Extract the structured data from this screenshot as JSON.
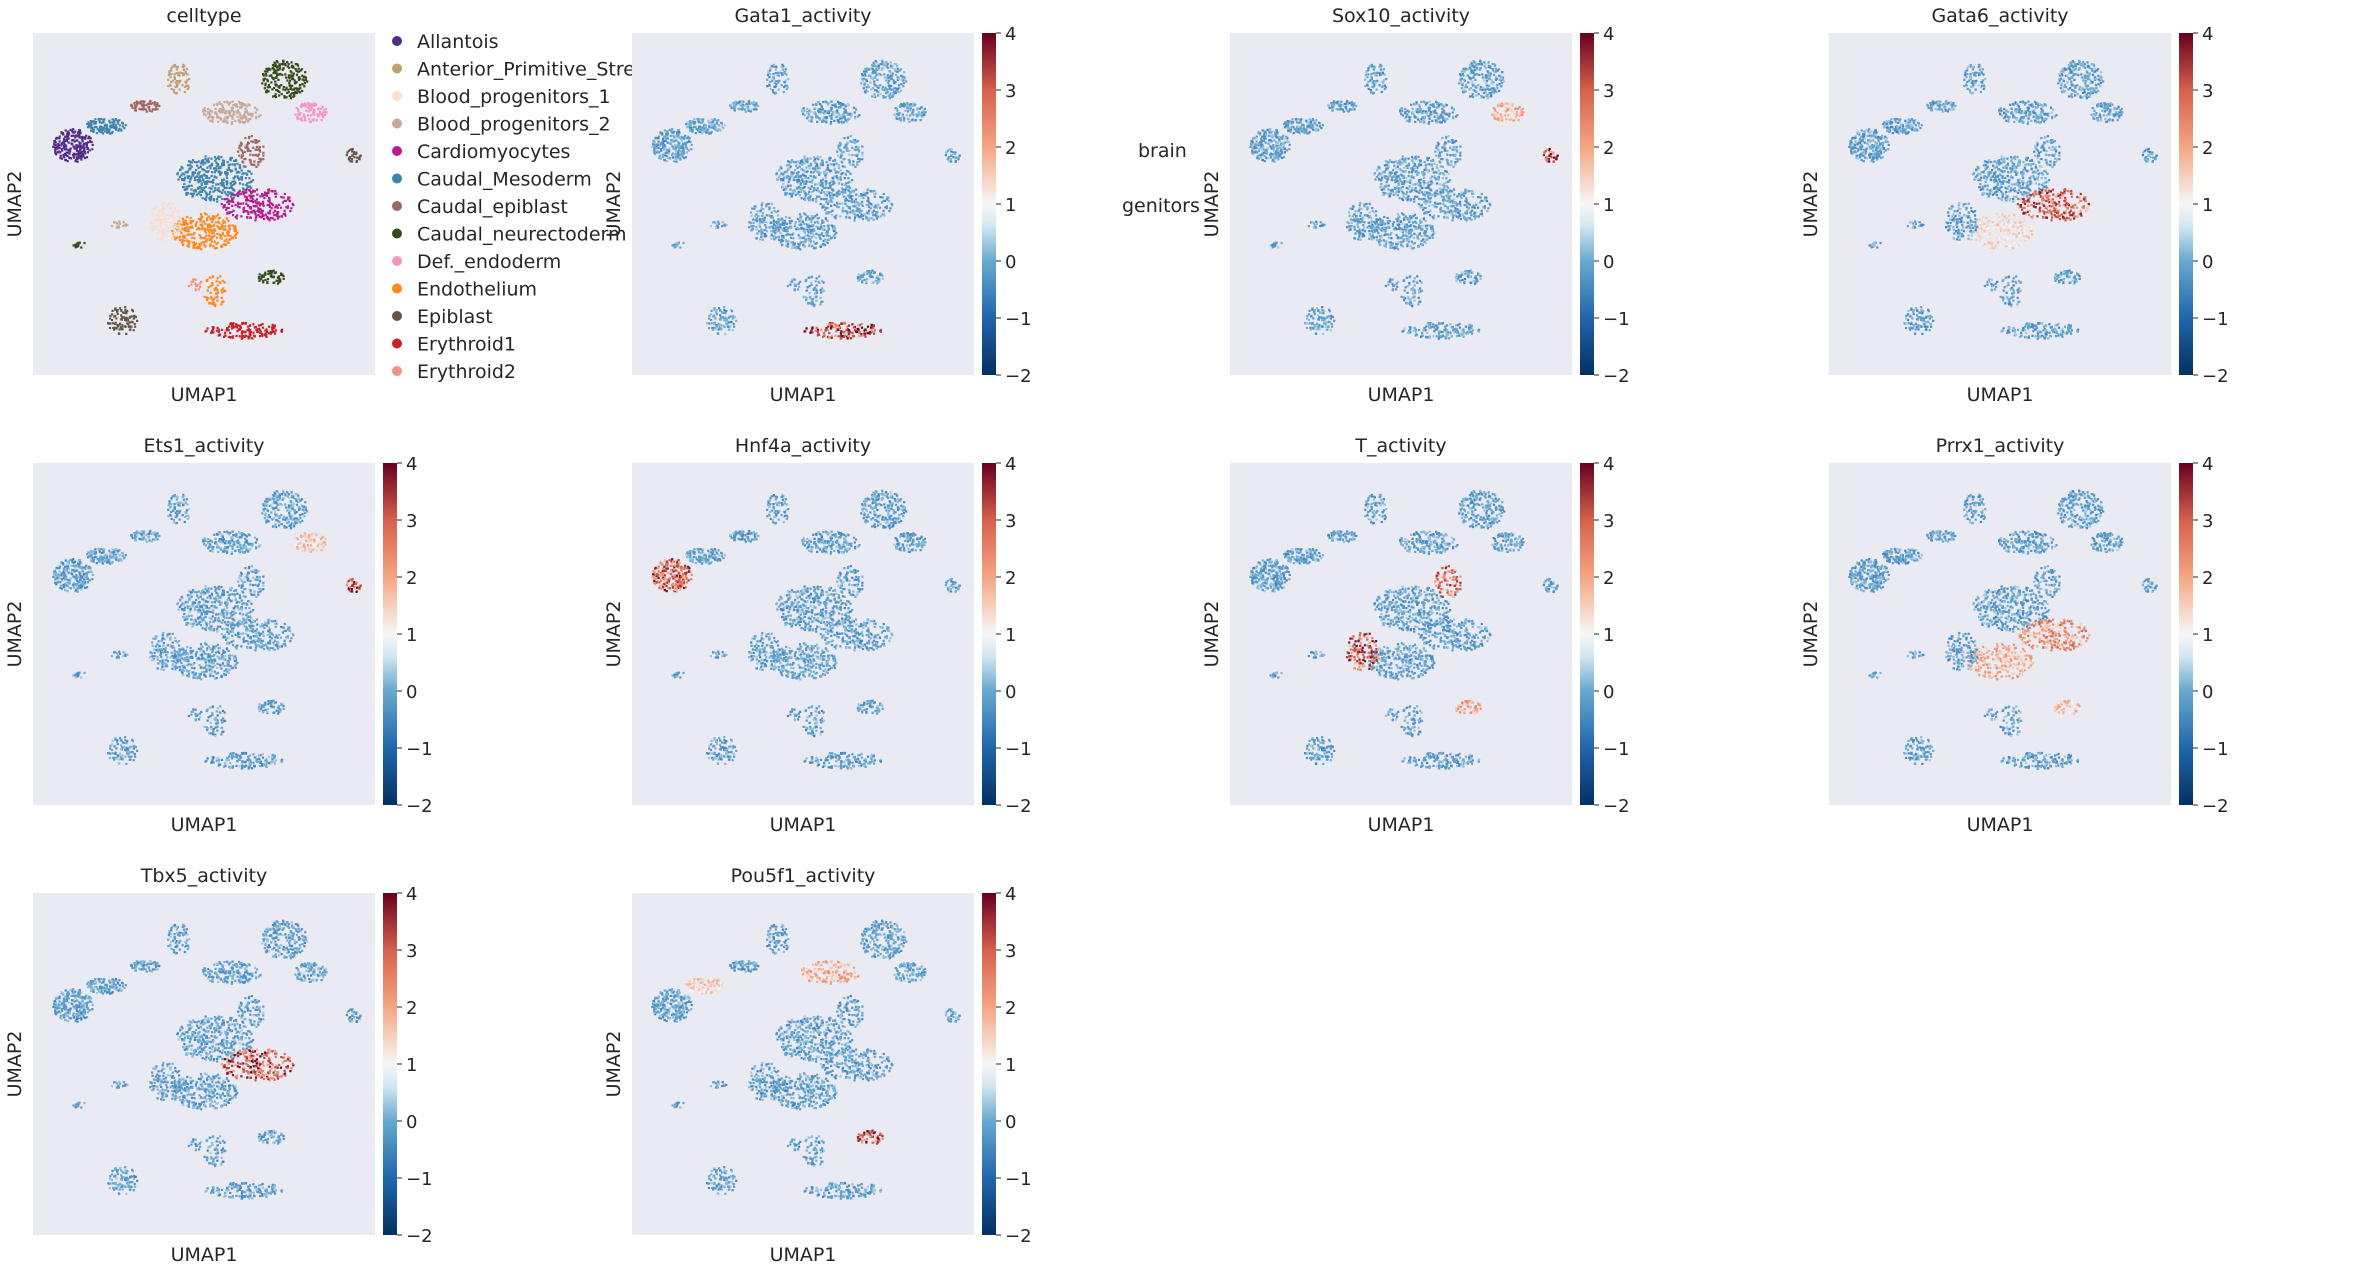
{
  "chart_data": [
    {
      "type": "scatter",
      "title": "celltype",
      "xlabel": "UMAP1",
      "ylabel": "UMAP2",
      "legend": {
        "placement": "right",
        "entries": [
          {
            "label": "Allantois",
            "color": "#532c8a"
          },
          {
            "label": "Anterior_Primitive_Streak",
            "color": "#c19f70"
          },
          {
            "label": "Blood_progenitors_1",
            "color": "#f9decf"
          },
          {
            "label": "Blood_progenitors_2",
            "color": "#c9a997"
          },
          {
            "label": "Cardiomyocytes",
            "color": "#b51d8d"
          },
          {
            "label": "Caudal_Mesoderm",
            "color": "#3f84aa"
          },
          {
            "label": "Caudal_epiblast",
            "color": "#9e6762"
          },
          {
            "label": "Caudal_neurectoderm",
            "color": "#354b1a"
          },
          {
            "label": "Def._endoderm",
            "color": "#f397c0"
          },
          {
            "label": "Endothelium",
            "color": "#ff891c"
          },
          {
            "label": "Epiblast",
            "color": "#635547"
          },
          {
            "label": "Erythroid1",
            "color": "#c72228"
          },
          {
            "label": "Erythroid2",
            "color": "#f79083"
          }
        ],
        "overflow_fragments": [
          "brain",
          "genitors"
        ]
      }
    },
    {
      "type": "scatter",
      "title": "Gata1_activity",
      "xlabel": "UMAP1",
      "ylabel": "UMAP2",
      "colorbar": {
        "ticks": [
          "4",
          "3",
          "2",
          "1",
          "0",
          "−1",
          "−2"
        ],
        "range": [
          -2,
          4
        ],
        "colormap": "RdBu_r"
      }
    },
    {
      "type": "scatter",
      "title": "Sox10_activity",
      "xlabel": "UMAP1",
      "ylabel": "UMAP2",
      "colorbar": {
        "ticks": [
          "4",
          "3",
          "2",
          "1",
          "0",
          "−1",
          "−2"
        ],
        "range": [
          -2,
          4
        ],
        "colormap": "RdBu_r"
      }
    },
    {
      "type": "scatter",
      "title": "Gata6_activity",
      "xlabel": "UMAP1",
      "ylabel": "UMAP2",
      "colorbar": {
        "ticks": [
          "4",
          "3",
          "2",
          "1",
          "0",
          "−1",
          "−2"
        ],
        "range": [
          -2,
          4
        ],
        "colormap": "RdBu_r"
      }
    },
    {
      "type": "scatter",
      "title": "Ets1_activity",
      "xlabel": "UMAP1",
      "ylabel": "UMAP2",
      "colorbar": {
        "ticks": [
          "4",
          "3",
          "2",
          "1",
          "0",
          "−1",
          "−2"
        ],
        "range": [
          -2,
          4
        ],
        "colormap": "RdBu_r"
      }
    },
    {
      "type": "scatter",
      "title": "Hnf4a_activity",
      "xlabel": "UMAP1",
      "ylabel": "UMAP2",
      "colorbar": {
        "ticks": [
          "4",
          "3",
          "2",
          "1",
          "0",
          "−1",
          "−2"
        ],
        "range": [
          -2,
          4
        ],
        "colormap": "RdBu_r"
      }
    },
    {
      "type": "scatter",
      "title": "T_activity",
      "xlabel": "UMAP1",
      "ylabel": "UMAP2",
      "colorbar": {
        "ticks": [
          "4",
          "3",
          "2",
          "1",
          "0",
          "−1",
          "−2"
        ],
        "range": [
          -2,
          4
        ],
        "colormap": "RdBu_r"
      }
    },
    {
      "type": "scatter",
      "title": "Prrx1_activity",
      "xlabel": "UMAP1",
      "ylabel": "UMAP2",
      "colorbar": {
        "ticks": [
          "4",
          "3",
          "2",
          "1",
          "0",
          "−1",
          "−2"
        ],
        "range": [
          -2,
          4
        ],
        "colormap": "RdBu_r"
      }
    },
    {
      "type": "scatter",
      "title": "Tbx5_activity",
      "xlabel": "UMAP1",
      "ylabel": "UMAP2",
      "colorbar": {
        "ticks": [
          "4",
          "3",
          "2",
          "1",
          "0",
          "−1",
          "−2"
        ],
        "range": [
          -2,
          4
        ],
        "colormap": "RdBu_r"
      }
    },
    {
      "type": "scatter",
      "title": "Pou5f1_activity",
      "xlabel": "UMAP1",
      "ylabel": "UMAP2",
      "colorbar": {
        "ticks": [
          "4",
          "3",
          "2",
          "1",
          "0",
          "−1",
          "−2"
        ],
        "range": [
          -2,
          4
        ],
        "colormap": "RdBu_r"
      }
    }
  ],
  "colors": {
    "panel_background": "#eaeaf2",
    "base_point": "#8fbfdc",
    "cmap_low": "#053061",
    "cmap_mid": "#f7f7f7",
    "cmap_high": "#67001f"
  }
}
